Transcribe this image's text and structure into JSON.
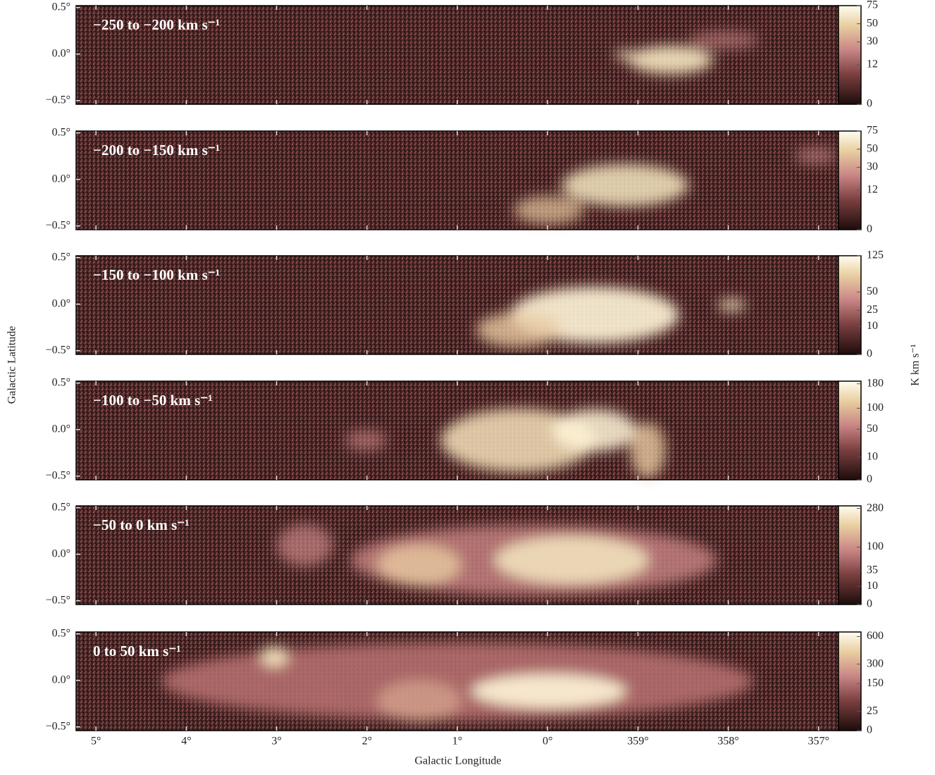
{
  "chart_data": {
    "type": "image-panels",
    "xlabel": "Galactic Longitude",
    "ylabel": "Galactic Latitude",
    "colorbar_label": "K km s⁻¹",
    "colorbar_scale": "sqrt",
    "xlim": [
      5.22,
      356.78
    ],
    "xticks": [
      {
        "value": 5,
        "label": "5°"
      },
      {
        "value": 4,
        "label": "4°"
      },
      {
        "value": 3,
        "label": "3°"
      },
      {
        "value": 2,
        "label": "2°"
      },
      {
        "value": 1,
        "label": "1°"
      },
      {
        "value": 0,
        "label": "0°"
      },
      {
        "value": 359,
        "label": "359°"
      },
      {
        "value": 358,
        "label": "358°"
      },
      {
        "value": 357,
        "label": "357°"
      }
    ],
    "ylim": [
      -0.54,
      0.52
    ],
    "yticks": [
      {
        "value": 0.5,
        "label": "0.5°"
      },
      {
        "value": 0,
        "label": "0.0°"
      },
      {
        "value": -0.5,
        "label": "−0.5°"
      }
    ],
    "panels": [
      {
        "title": "−250 to −200 km s⁻¹",
        "clim": [
          0,
          75
        ],
        "cticks": [
          0,
          12,
          30,
          50,
          75
        ]
      },
      {
        "title": "−200 to −150 km s⁻¹",
        "clim": [
          0,
          75
        ],
        "cticks": [
          0,
          12,
          30,
          50,
          75
        ]
      },
      {
        "title": "−150 to −100 km s⁻¹",
        "clim": [
          0,
          125
        ],
        "cticks": [
          0,
          10,
          25,
          50,
          125
        ]
      },
      {
        "title": "−100 to −50 km s⁻¹",
        "clim": [
          0,
          190
        ],
        "cticks": [
          0,
          10,
          50,
          100,
          180
        ]
      },
      {
        "title": "−50 to 0 km s⁻¹",
        "clim": [
          0,
          295
        ],
        "cticks": [
          0,
          10,
          35,
          100,
          280
        ]
      },
      {
        "title": "0 to 50 km s⁻¹",
        "clim": [
          0,
          660
        ],
        "cticks": [
          0,
          25,
          150,
          300,
          600
        ]
      }
    ]
  }
}
